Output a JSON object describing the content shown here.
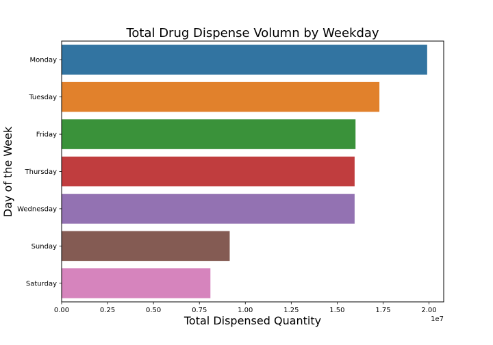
{
  "chart_data": {
    "type": "bar",
    "orientation": "horizontal",
    "title": "Total Drug Dispense Volumn by Weekday",
    "xlabel": "Total Dispensed Quantity",
    "ylabel": "Day of the Week",
    "x_offset_label": "1e7",
    "xlim": [
      0,
      2.08
    ],
    "x_scale_factor": 10000000,
    "xticks": [
      0.0,
      0.25,
      0.5,
      0.75,
      1.0,
      1.25,
      1.5,
      1.75,
      2.0
    ],
    "xtick_labels": [
      "0.00",
      "0.25",
      "0.50",
      "0.75",
      "1.00",
      "1.25",
      "1.50",
      "1.75",
      "2.00"
    ],
    "categories": [
      "Monday",
      "Tuesday",
      "Friday",
      "Thursday",
      "Wednesday",
      "Sunday",
      "Saturday"
    ],
    "values": [
      19900000,
      17300000,
      16000000,
      15950000,
      15950000,
      9150000,
      8100000
    ],
    "colors": [
      "#3274a1",
      "#e1812c",
      "#3a923a",
      "#c03d3e",
      "#9372b2",
      "#845b53",
      "#d684bd"
    ],
    "grid": false,
    "legend": "none"
  }
}
